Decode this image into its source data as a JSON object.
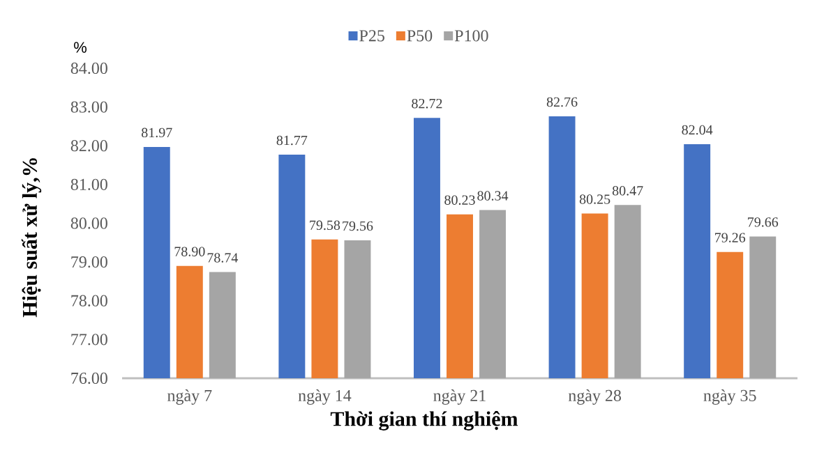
{
  "chart_data": {
    "type": "bar",
    "xlabel": "Thời gian thí nghiệm",
    "ylabel": "Hiệu suất xử lý,%",
    "annotations": [
      "%"
    ],
    "categories": [
      "ngày 7",
      "ngày 14",
      "ngày 21",
      "ngày 28",
      "ngày 35"
    ],
    "series": [
      {
        "name": "P25",
        "color": "#4472c4",
        "values": [
          81.97,
          81.77,
          82.72,
          82.76,
          82.04
        ],
        "value_labels": [
          "81.97",
          "81.77",
          "82.72",
          "82.76",
          "82.04"
        ]
      },
      {
        "name": "P50",
        "color": "#ed7d31",
        "values": [
          78.9,
          79.58,
          80.23,
          80.25,
          79.26
        ],
        "value_labels": [
          "78.90",
          "79.58",
          "80.23",
          "80.25",
          "79.26"
        ]
      },
      {
        "name": "P100",
        "color": "#a5a5a5",
        "values": [
          78.74,
          79.56,
          80.34,
          80.47,
          79.66
        ],
        "value_labels": [
          "78.74",
          "79.56",
          "80.34",
          "80.47",
          "79.66"
        ]
      }
    ],
    "ylim": [
      76,
      84
    ],
    "yticks": [
      {
        "value": 76,
        "label": "76.00"
      },
      {
        "value": 77,
        "label": "77.00"
      },
      {
        "value": 78,
        "label": "78.00"
      },
      {
        "value": 79,
        "label": "79.00"
      },
      {
        "value": 80,
        "label": "80.00"
      },
      {
        "value": 81,
        "label": "81.00"
      },
      {
        "value": 82,
        "label": "82.00"
      },
      {
        "value": 83,
        "label": "83.00"
      },
      {
        "value": 84,
        "label": "84.00"
      }
    ],
    "legend": "top"
  }
}
